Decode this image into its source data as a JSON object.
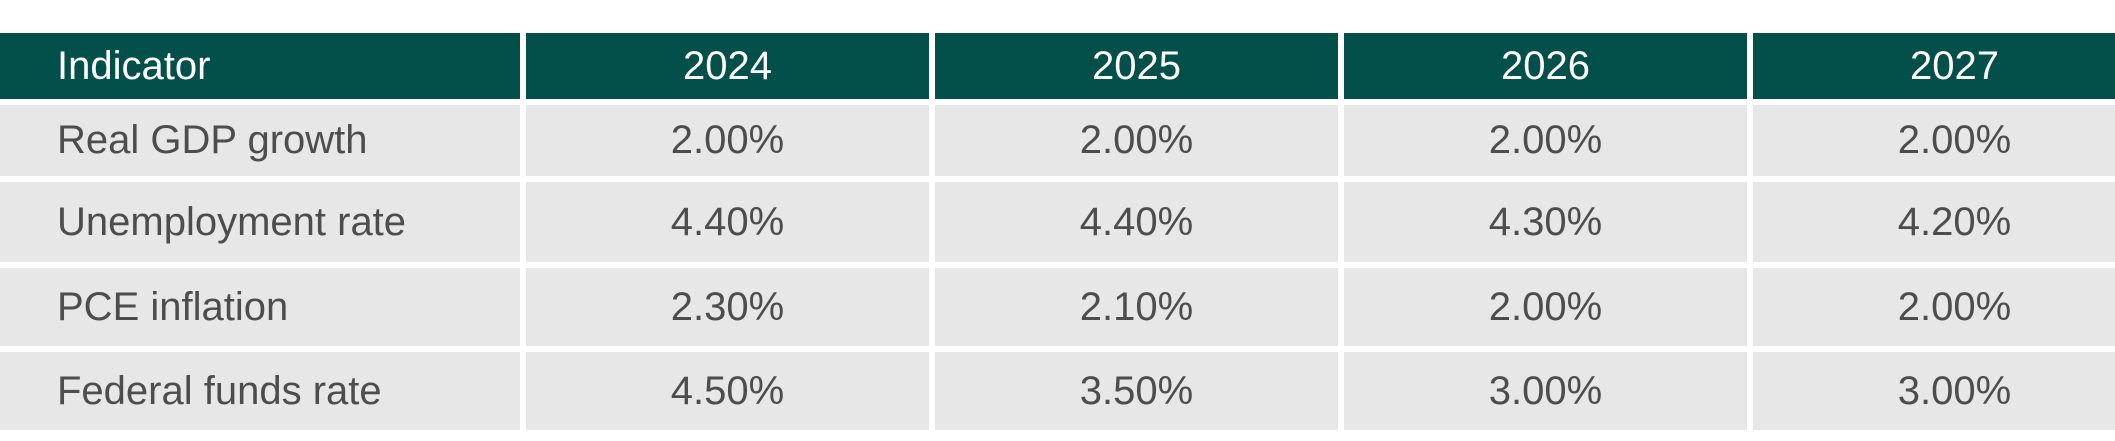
{
  "chart_data": {
    "type": "table",
    "columns": [
      "Indicator",
      "2024",
      "2025",
      "2026",
      "2027"
    ],
    "rows": [
      {
        "indicator": "Real GDP growth",
        "values": [
          "2.00%",
          "2.00%",
          "2.00%",
          "2.00%"
        ]
      },
      {
        "indicator": "Unemployment rate",
        "values": [
          "4.40%",
          "4.40%",
          "4.30%",
          "4.20%"
        ]
      },
      {
        "indicator": "PCE inflation",
        "values": [
          "2.30%",
          "2.10%",
          "2.00%",
          "2.00%"
        ]
      },
      {
        "indicator": "Federal funds rate",
        "values": [
          "4.50%",
          "3.50%",
          "3.00%",
          "3.00%"
        ]
      }
    ]
  },
  "colors": {
    "header_bg": "#034f4a",
    "header_text": "#ffffff",
    "cell_bg": "#e7e7e7",
    "cell_text": "#4d4d4d"
  }
}
